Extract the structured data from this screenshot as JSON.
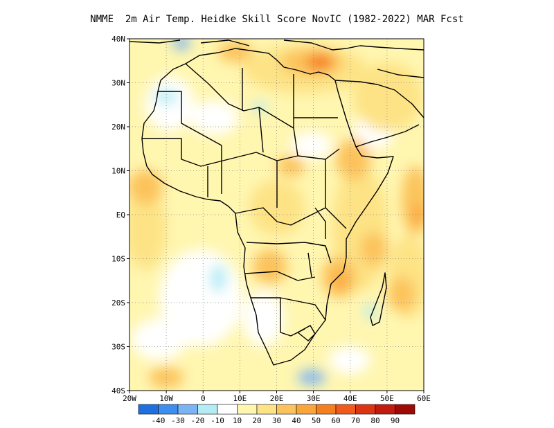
{
  "title": "NMME  2m Air Temp. Heidke Skill Score NovIC (1982-2022) MAR Fcst",
  "map": {
    "lon_range": [
      -20,
      60
    ],
    "lat_range": [
      -40,
      40
    ],
    "lat_ticks": [
      {
        "value": 40,
        "label": "40N"
      },
      {
        "value": 30,
        "label": "30N"
      },
      {
        "value": 20,
        "label": "20N"
      },
      {
        "value": 10,
        "label": "10N"
      },
      {
        "value": 0,
        "label": "EQ"
      },
      {
        "value": -10,
        "label": "10S"
      },
      {
        "value": -20,
        "label": "20S"
      },
      {
        "value": -30,
        "label": "30S"
      },
      {
        "value": -40,
        "label": "40S"
      }
    ],
    "lon_ticks": [
      {
        "value": -20,
        "label": "20W"
      },
      {
        "value": -10,
        "label": "10W"
      },
      {
        "value": 0,
        "label": "0"
      },
      {
        "value": 10,
        "label": "10E"
      },
      {
        "value": 20,
        "label": "20E"
      },
      {
        "value": 30,
        "label": "30E"
      },
      {
        "value": 40,
        "label": "40E"
      },
      {
        "value": 50,
        "label": "50E"
      },
      {
        "value": 60,
        "label": "60E"
      }
    ],
    "grid": "dotted"
  },
  "colorbar": {
    "colors": [
      "#1f6fe0",
      "#3c8ef0",
      "#7ab4f5",
      "#b4ecf5",
      "#ffffff",
      "#fff6b0",
      "#fde385",
      "#fcc35c",
      "#f9a53a",
      "#f57f1f",
      "#f05a1a",
      "#dd3414",
      "#c21a0e",
      "#a00a05"
    ],
    "labels": [
      "-40",
      "-30",
      "-20",
      "-10",
      "10",
      "20",
      "30",
      "40",
      "50",
      "60",
      "70",
      "80",
      "90"
    ]
  }
}
